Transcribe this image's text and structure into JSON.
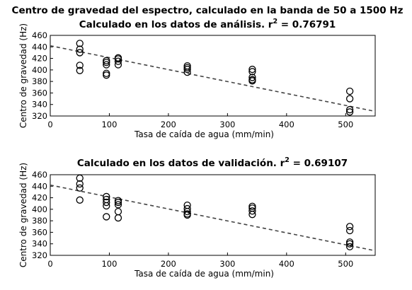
{
  "chart_data": [
    {
      "type": "scatter",
      "title": "Centro de gravedad del espectro, calculado en la banda de 50 a 1500 Hz",
      "subtitle_text": "Calculado en los datos de análisis. r",
      "subtitle_sup": "2",
      "subtitle_value": " = 0.76791",
      "xlabel": "Tasa de caída de agua (mm/min)",
      "ylabel": "Centro de gravedad (Hz)",
      "xlim": [
        0,
        550
      ],
      "ylim": [
        320,
        460
      ],
      "xticks": [
        "0",
        "100",
        "200",
        "300",
        "400",
        "500"
      ],
      "yticks": [
        "320",
        "340",
        "360",
        "380",
        "400",
        "420",
        "440",
        "460"
      ],
      "grid": false,
      "marker": "circle",
      "trendline": {
        "x": [
          0,
          550
        ],
        "y": [
          442,
          328
        ],
        "style": "dashed"
      },
      "points": [
        {
          "x": 50,
          "y": 446
        },
        {
          "x": 50,
          "y": 436
        },
        {
          "x": 50,
          "y": 430
        },
        {
          "x": 50,
          "y": 408
        },
        {
          "x": 50,
          "y": 399
        },
        {
          "x": 95,
          "y": 416
        },
        {
          "x": 95,
          "y": 413
        },
        {
          "x": 95,
          "y": 409
        },
        {
          "x": 95,
          "y": 394
        },
        {
          "x": 95,
          "y": 391
        },
        {
          "x": 115,
          "y": 421
        },
        {
          "x": 115,
          "y": 419
        },
        {
          "x": 115,
          "y": 415
        },
        {
          "x": 115,
          "y": 409
        },
        {
          "x": 232,
          "y": 407
        },
        {
          "x": 232,
          "y": 404
        },
        {
          "x": 232,
          "y": 401
        },
        {
          "x": 232,
          "y": 396
        },
        {
          "x": 342,
          "y": 401
        },
        {
          "x": 342,
          "y": 397
        },
        {
          "x": 342,
          "y": 387
        },
        {
          "x": 342,
          "y": 383
        },
        {
          "x": 342,
          "y": 381
        },
        {
          "x": 507,
          "y": 363
        },
        {
          "x": 507,
          "y": 350
        },
        {
          "x": 507,
          "y": 331
        },
        {
          "x": 507,
          "y": 327
        }
      ]
    },
    {
      "type": "scatter",
      "subtitle_text": "Calculado en los datos de validación. r",
      "subtitle_sup": "2",
      "subtitle_value": " = 0.69107",
      "xlabel": "Tasa de caída de agua (mm/min)",
      "ylabel": "Centro de gravedad (Hz)",
      "xlim": [
        0,
        550
      ],
      "ylim": [
        320,
        460
      ],
      "xticks": [
        "0",
        "100",
        "200",
        "300",
        "400",
        "500"
      ],
      "yticks": [
        "320",
        "340",
        "360",
        "380",
        "400",
        "420",
        "440",
        "460"
      ],
      "grid": false,
      "marker": "circle",
      "trendline": {
        "x": [
          0,
          550
        ],
        "y": [
          442,
          328
        ],
        "style": "dashed"
      },
      "points": [
        {
          "x": 50,
          "y": 454
        },
        {
          "x": 50,
          "y": 444
        },
        {
          "x": 50,
          "y": 437
        },
        {
          "x": 50,
          "y": 416
        },
        {
          "x": 95,
          "y": 422
        },
        {
          "x": 95,
          "y": 417
        },
        {
          "x": 95,
          "y": 412
        },
        {
          "x": 95,
          "y": 406
        },
        {
          "x": 95,
          "y": 387
        },
        {
          "x": 115,
          "y": 415
        },
        {
          "x": 115,
          "y": 412
        },
        {
          "x": 115,
          "y": 408
        },
        {
          "x": 115,
          "y": 396
        },
        {
          "x": 115,
          "y": 385
        },
        {
          "x": 232,
          "y": 407
        },
        {
          "x": 232,
          "y": 401
        },
        {
          "x": 232,
          "y": 396
        },
        {
          "x": 232,
          "y": 392
        },
        {
          "x": 232,
          "y": 390
        },
        {
          "x": 342,
          "y": 405
        },
        {
          "x": 342,
          "y": 402
        },
        {
          "x": 342,
          "y": 397
        },
        {
          "x": 342,
          "y": 391
        },
        {
          "x": 507,
          "y": 370
        },
        {
          "x": 507,
          "y": 363
        },
        {
          "x": 507,
          "y": 343
        },
        {
          "x": 507,
          "y": 340
        },
        {
          "x": 507,
          "y": 335
        }
      ]
    }
  ]
}
